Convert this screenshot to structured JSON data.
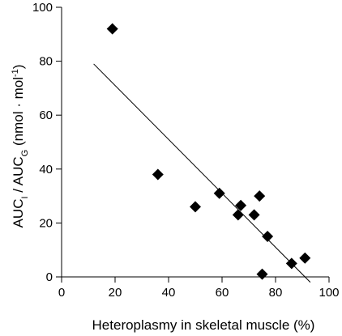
{
  "chart_data": {
    "type": "scatter",
    "title": "",
    "xlabel": "Heteroplasmy in skeletal muscle (%)",
    "ylabel": {
      "prefix": "AUC",
      "sub1": "I",
      "mid": " / AUC",
      "sub2": "G",
      "unit_open": " (nmol · mol",
      "sup": "-1",
      "unit_close": ")"
    },
    "xlim": [
      0,
      100
    ],
    "ylim": [
      0,
      100
    ],
    "xticks": [
      0,
      20,
      40,
      60,
      80,
      100
    ],
    "yticks": [
      0,
      20,
      40,
      60,
      80,
      100
    ],
    "grid": false,
    "legend": "none",
    "marker": "diamond",
    "marker_color": "#000000",
    "points": [
      {
        "x": 19,
        "y": 92
      },
      {
        "x": 36,
        "y": 38
      },
      {
        "x": 50,
        "y": 26
      },
      {
        "x": 59,
        "y": 31
      },
      {
        "x": 66,
        "y": 23
      },
      {
        "x": 67,
        "y": 26.5
      },
      {
        "x": 72,
        "y": 23
      },
      {
        "x": 74,
        "y": 30
      },
      {
        "x": 75,
        "y": 1
      },
      {
        "x": 77,
        "y": 15
      },
      {
        "x": 86,
        "y": 5
      },
      {
        "x": 91,
        "y": 7
      }
    ],
    "trendline": {
      "x": [
        12,
        93
      ],
      "y": [
        79,
        -2
      ]
    }
  }
}
